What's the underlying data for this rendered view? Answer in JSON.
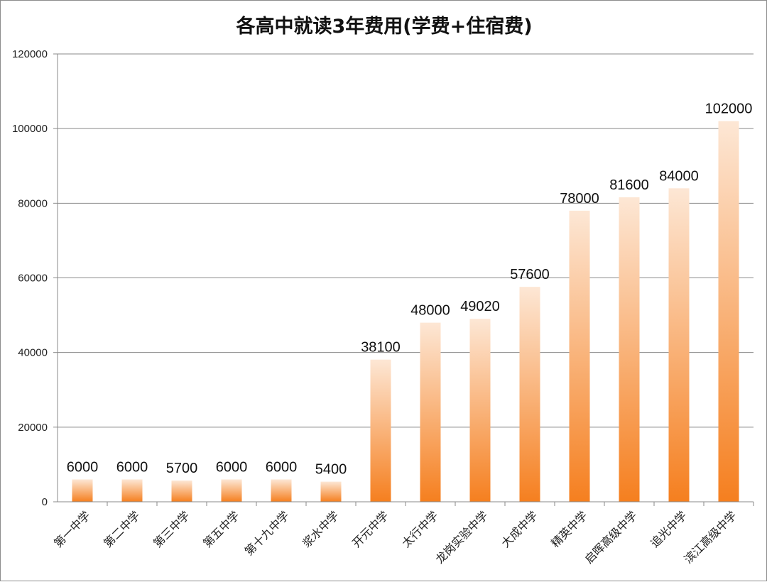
{
  "chart_data": {
    "type": "bar",
    "title": "各高中就读3年费用(学费+住宿费)",
    "xlabel": "",
    "ylabel": "",
    "categories": [
      "第一中学",
      "第二中学",
      "第三中学",
      "第五中学",
      "第十九中学",
      "浆水中学",
      "开元中学",
      "太行中学",
      "龙岗实验中学",
      "大成中学",
      "精英中学",
      "启晖高级中学",
      "追光中学",
      "滨江高级中学"
    ],
    "values": [
      6000,
      6000,
      5700,
      6000,
      6000,
      5400,
      38100,
      48000,
      49020,
      57600,
      78000,
      81600,
      84000,
      102000
    ],
    "data_labels": [
      "6000",
      "6000",
      "5700",
      "6000",
      "6000",
      "5400",
      "38100",
      "48000",
      "49020",
      "57600",
      "78000",
      "81600",
      "84000",
      "102000"
    ],
    "ylim": [
      0,
      120000
    ],
    "yticks": [
      0,
      20000,
      40000,
      60000,
      80000,
      100000,
      120000
    ],
    "ytick_labels": [
      "0",
      "20000",
      "40000",
      "60000",
      "80000",
      "100000",
      "120000"
    ],
    "grid": true,
    "legend": "none",
    "bar_gradient": {
      "top": "#fde7d5",
      "bottom": "#f57f1f"
    }
  }
}
